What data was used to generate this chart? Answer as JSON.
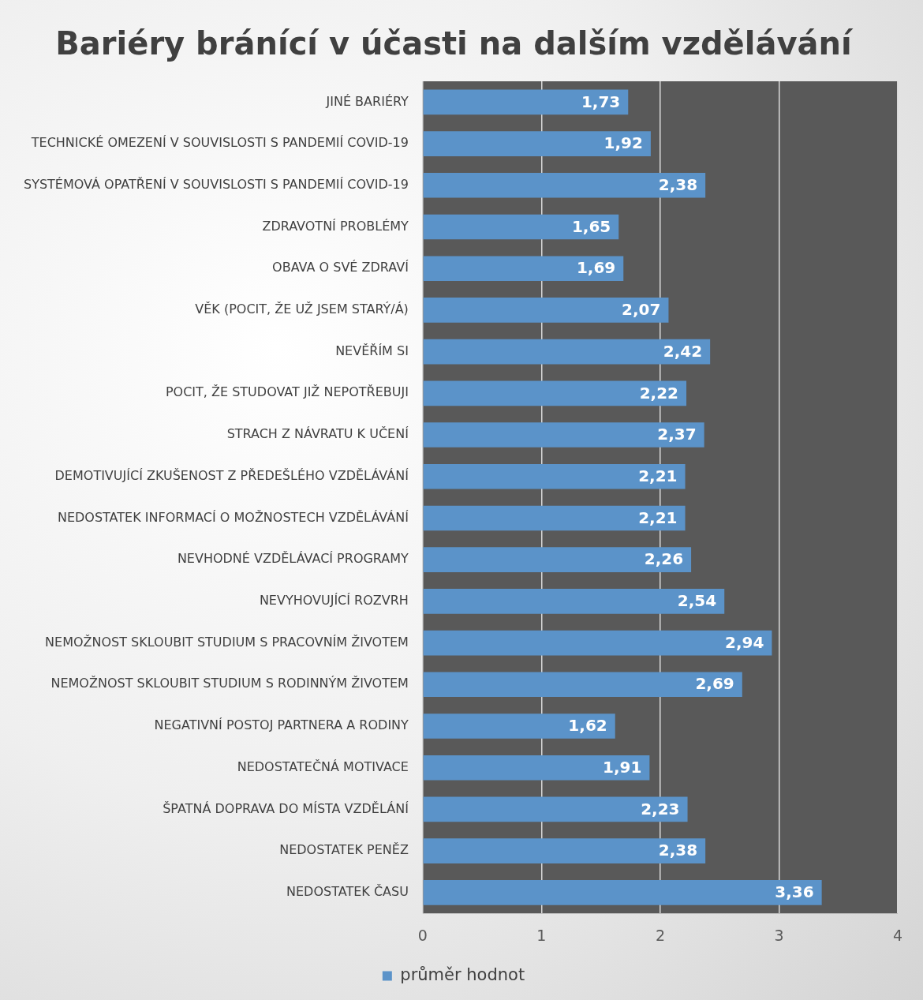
{
  "chart_data": {
    "type": "bar",
    "orientation": "horizontal",
    "title": "Bariéry bránící v účasti na dalším vzdělávání",
    "categories": [
      "JINÉ BARIÉRY",
      "TECHNICKÉ OMEZENÍ V SOUVISLOSTI S PANDEMIÍ COVID-19",
      "SYSTÉMOVÁ OPATŘENÍ V SOUVISLOSTI S PANDEMIÍ COVID-19",
      "ZDRAVOTNÍ PROBLÉMY",
      "OBAVA O SVÉ ZDRAVÍ",
      "VĚK (POCIT, ŽE UŽ JSEM STARÝ/Á)",
      "NEVĚŘÍM SI",
      "POCIT, ŽE STUDOVAT JIŽ NEPOTŘEBUJI",
      "STRACH Z NÁVRATU K UČENÍ",
      "DEMOTIVUJÍCÍ ZKUŠENOST Z PŘEDEŠLÉHO VZDĚLÁVÁNÍ",
      "NEDOSTATEK INFORMACÍ O MOŽNOSTECH VZDĚLÁVÁNÍ",
      "NEVHODNÉ VZDĚLÁVACÍ PROGRAMY",
      "NEVYHOVUJÍCÍ ROZVRH",
      "NEMOŽNOST SKLOUBIT STUDIUM S PRACOVNÍM ŽIVOTEM",
      "NEMOŽNOST SKLOUBIT STUDIUM S RODINNÝM ŽIVOTEM",
      "NEGATIVNÍ POSTOJ PARTNERA A RODINY",
      "NEDOSTATEČNÁ MOTIVACE",
      "ŠPATNÁ DOPRAVA DO MÍSTA VZDĚLÁNÍ",
      "NEDOSTATEK PENĚZ",
      "NEDOSTATEK ČASU"
    ],
    "series": [
      {
        "name": "průměr hodnot",
        "color": "#5b93c9",
        "values": [
          1.73,
          1.92,
          2.38,
          1.65,
          1.69,
          2.07,
          2.42,
          2.22,
          2.37,
          2.21,
          2.21,
          2.26,
          2.54,
          2.94,
          2.69,
          1.62,
          1.91,
          2.23,
          2.38,
          3.36
        ],
        "value_labels": [
          "1,73",
          "1,92",
          "2,38",
          "1,65",
          "1,69",
          "2,07",
          "2,42",
          "2,22",
          "2,37",
          "2,21",
          "2,21",
          "2,26",
          "2,54",
          "2,94",
          "2,69",
          "1,62",
          "1,91",
          "2,23",
          "2,38",
          "3,36"
        ]
      }
    ],
    "xlim": [
      0,
      4
    ],
    "xticks": [
      0,
      1,
      2,
      3,
      4
    ],
    "grid": "x",
    "legend": "bottom"
  }
}
